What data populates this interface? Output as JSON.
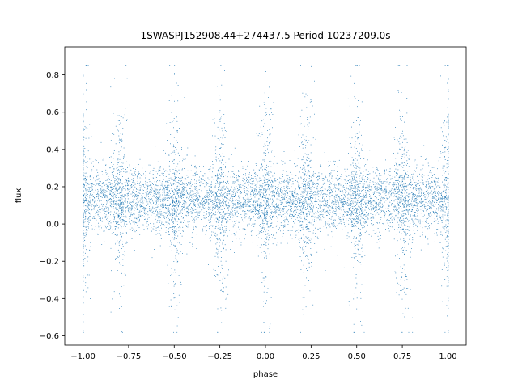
{
  "chart_data": {
    "type": "scatter",
    "title": "1SWASPJ152908.44+274437.5 Period 10237209.0s",
    "xlabel": "phase",
    "ylabel": "flux",
    "xlim": [
      -1.1,
      1.1
    ],
    "ylim": [
      -0.65,
      0.95
    ],
    "xticks": [
      -1.0,
      -0.75,
      -0.5,
      -0.25,
      0.0,
      0.25,
      0.5,
      0.75,
      1.0
    ],
    "xtick_labels": [
      "−1.00",
      "−0.75",
      "−0.50",
      "−0.25",
      "0.00",
      "0.25",
      "0.50",
      "0.75",
      "1.00"
    ],
    "yticks": [
      -0.6,
      -0.4,
      -0.2,
      0.0,
      0.2,
      0.4,
      0.6,
      0.8
    ],
    "ytick_labels": [
      "−0.6",
      "−0.4",
      "−0.2",
      "0.0",
      "0.2",
      "0.4",
      "0.6",
      "0.8"
    ],
    "grid": false,
    "marker_color": "#1f77b4",
    "band": {
      "x_range": [
        -1.0,
        1.0
      ],
      "core_y_range": [
        0.0,
        0.25
      ],
      "typical_y_range": [
        -0.1,
        0.35
      ],
      "median_flux": 0.13
    },
    "spike_phases": [
      -1.0,
      -0.8,
      -0.5,
      -0.25,
      0.0,
      0.22,
      0.5,
      0.75,
      1.0
    ],
    "spike_y_range": [
      -0.58,
      0.85
    ],
    "x": [
      -1.0,
      -0.98,
      -0.9,
      -0.8,
      -0.75,
      -0.65,
      -0.5,
      -0.48,
      -0.4,
      -0.3,
      -0.25,
      -0.22,
      -0.1,
      0.0,
      0.02,
      0.1,
      0.22,
      0.25,
      0.35,
      0.45,
      0.5,
      0.52,
      0.6,
      0.7,
      0.75,
      0.78,
      0.9,
      1.0
    ],
    "y": [
      0.8,
      -0.55,
      0.15,
      0.45,
      0.1,
      0.12,
      0.85,
      -0.5,
      0.14,
      0.13,
      0.55,
      -0.45,
      0.12,
      0.82,
      -0.55,
      0.13,
      0.7,
      0.12,
      0.1,
      0.14,
      0.85,
      -0.52,
      0.13,
      0.15,
      0.5,
      -0.45,
      0.12,
      0.78
    ]
  }
}
